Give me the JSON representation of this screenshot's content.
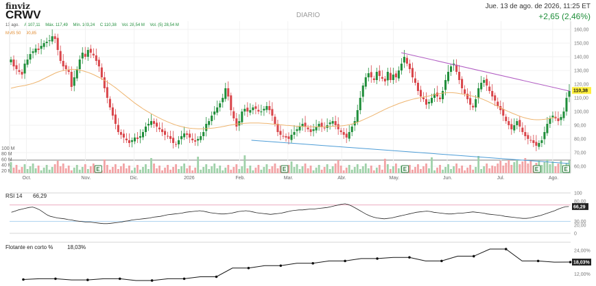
{
  "header": {
    "brand": "finviz",
    "ticker": "CRWV",
    "timeframe": "DIARIO",
    "datetime": "Jue. 13 de ago. de 2026, 11:25 ET",
    "change": "+2,65 (2,46%)"
  },
  "ohlc": {
    "date": "13 ago.",
    "open": "A 107,11",
    "high": "Máx. 117,49",
    "low": "Mín. 103,24",
    "close": "C 110,38",
    "volume": "Vol. 28,54 M",
    "volume5": "Vol. (5) 28,54 M"
  },
  "sma": {
    "label": "MMS 50",
    "value": "90,85"
  },
  "colors": {
    "up": "#1f8e3a",
    "down": "#d9454a",
    "sma": "#eeb46e",
    "trend_upper": "#b05ac2",
    "trend_lower": "#4a9bd6",
    "last_price_bg": "#ffef3d",
    "volume_up": "#9fd1a9",
    "volume_down": "#f2a3a5"
  },
  "chart_data": [
    {
      "type": "candlestick",
      "title": "CRWV",
      "ylim": [
        55,
        160
      ],
      "y_ticks": [
        "160,00",
        "150,00",
        "140,00",
        "130,00",
        "120,00",
        "110,00",
        "100,00",
        "90,00",
        "80,00",
        "70,00",
        "60,00"
      ],
      "x_ticks": [
        "Oct.",
        "Nov.",
        "Dic.",
        "2026",
        "Feb.",
        "Mar.",
        "Abr.",
        "May.",
        "Jun.",
        "Jul.",
        "Ago."
      ],
      "last_price": "110,38",
      "close_series": [
        133,
        128,
        126,
        124,
        122,
        130,
        133,
        137,
        139,
        141,
        140,
        143,
        145,
        146,
        147,
        150,
        148,
        140,
        132,
        128,
        126,
        124,
        113,
        120,
        126,
        133,
        138,
        135,
        140,
        138,
        136,
        132,
        128,
        120,
        112,
        105,
        98,
        92,
        86,
        80,
        78,
        76,
        74,
        72,
        74,
        76,
        75,
        77,
        80,
        84,
        86,
        88,
        86,
        84,
        82,
        80,
        78,
        77,
        75,
        72,
        71,
        74,
        77,
        79,
        78,
        76,
        74,
        73,
        75,
        77,
        80,
        86,
        88,
        92,
        95,
        98,
        101,
        105,
        112,
        106,
        96,
        90,
        84,
        88,
        95,
        97,
        95,
        96,
        98,
        97,
        95,
        95,
        97,
        99,
        96,
        92,
        86,
        80,
        78,
        77,
        76,
        75,
        78,
        80,
        82,
        84,
        86,
        84,
        82,
        80,
        82,
        84,
        86,
        84,
        83,
        85,
        87,
        88,
        85,
        82,
        80,
        78,
        76,
        80,
        84,
        88,
        96,
        105,
        114,
        120,
        123,
        120,
        118,
        124,
        121,
        119,
        117,
        124,
        118,
        122,
        120,
        125,
        130,
        135,
        130,
        126,
        120,
        116,
        110,
        106,
        104,
        100,
        102,
        105,
        108,
        106,
        104,
        110,
        118,
        124,
        128,
        130,
        124,
        118,
        112,
        108,
        104,
        100,
        98,
        104,
        112,
        116,
        118,
        114,
        110,
        106,
        103,
        99,
        96,
        92,
        88,
        85,
        82,
        85,
        88,
        84,
        80,
        77,
        75,
        74,
        72,
        70,
        72,
        74,
        80,
        86,
        90,
        92,
        90,
        88,
        91,
        95,
        105,
        110
      ],
      "sma50_series": [
        112,
        112.5,
        113,
        113.4,
        113.7,
        114,
        114.5,
        115,
        115.6,
        116.3,
        117,
        118,
        119,
        120,
        121,
        122,
        123,
        123.8,
        124.4,
        124.9,
        125.3,
        125.6,
        125.8,
        125.8,
        125.6,
        125.3,
        124.8,
        124.2,
        123.6,
        122.8,
        122,
        121,
        120,
        119,
        117.8,
        116.5,
        115.2,
        113.8,
        112.4,
        110.8,
        109.2,
        107.6,
        106,
        104.4,
        102.8,
        101.2,
        99.8,
        98.4,
        97,
        95.8,
        94.6,
        93.4,
        92.3,
        91.2,
        90.2,
        89.2,
        88.3,
        87.4,
        86.6,
        85.8,
        85.1,
        84.5,
        84,
        83.5,
        83.1,
        82.8,
        82.6,
        82.5,
        82.4,
        82.4,
        82.4,
        82.5,
        82.6,
        82.8,
        83,
        83.3,
        83.6,
        84,
        84.4,
        84.8,
        85.2,
        85.5,
        85.8,
        86,
        86.2,
        86.4,
        86.5,
        86.6,
        86.6,
        86.6,
        86.6,
        86.5,
        86.4,
        86.3,
        86.1,
        85.9,
        85.7,
        85.5,
        85.3,
        85.1,
        84.9,
        84.8,
        84.6,
        84.4,
        84.3,
        84.2,
        84.1,
        84,
        83.9,
        83.9,
        83.8,
        83.8,
        83.8,
        83.8,
        83.9,
        84,
        84.1,
        84.2,
        84.3,
        84.4,
        84.5,
        84.7,
        85,
        85.4,
        85.9,
        86.5,
        87.2,
        88,
        88.9,
        89.8,
        90.7,
        91.6,
        92.6,
        93.6,
        94.6,
        95.6,
        96.6,
        97.5,
        98.4,
        99.2,
        100,
        100.8,
        101.5,
        102.2,
        102.8,
        103.4,
        103.9,
        104.4,
        104.8,
        105.2,
        105.6,
        106,
        106.4,
        106.8,
        107.3,
        107.8,
        108.2,
        108.5,
        108.7,
        108.8,
        108.8,
        108.7,
        108.5,
        108.2,
        107.8,
        107.4,
        107,
        106.6,
        106.2,
        105.7,
        105.1,
        104.4,
        103.6,
        102.7,
        101.8,
        100.8,
        99.8,
        98.8,
        97.8,
        96.8,
        95.8,
        94.9,
        94,
        93.2,
        92.4,
        91.6,
        90.9,
        90.3,
        89.8,
        89.4,
        89.1,
        89,
        89,
        89.1,
        89.3,
        89.6,
        90,
        90.4,
        90.85
      ],
      "trendlines": [
        {
          "name": "resistencia",
          "from": {
            "date": "May.",
            "value": 138
          },
          "to": {
            "date": "Ago. 13",
            "value": 110
          }
        },
        {
          "name": "soporte",
          "from": {
            "date": "Feb.",
            "value": 74
          },
          "to": {
            "date": "Ago. 13",
            "value": 57
          }
        }
      ],
      "volume_ticks": [
        "100 M",
        "80 M",
        "60 M",
        "40 M",
        "20 M"
      ],
      "earnings_markers": [
        "E",
        "E",
        "E",
        "E",
        "E"
      ]
    },
    {
      "type": "line",
      "title": "RSI 14",
      "value": "66,29",
      "ylim": [
        0,
        100
      ],
      "y_ticks": [
        "100",
        "80,00",
        "70,00",
        "50,00",
        "30,00",
        "20,00",
        "0"
      ],
      "overbought": 70,
      "oversold": 30,
      "series": [
        52,
        55,
        58,
        60,
        62,
        64,
        65,
        62,
        58,
        52,
        46,
        42,
        40,
        38,
        37,
        36,
        34,
        33,
        31,
        30,
        29,
        28,
        28,
        27,
        26,
        25,
        24,
        24,
        25,
        26,
        27,
        28,
        30,
        31,
        33,
        34,
        35,
        36,
        37,
        38,
        40,
        41,
        42,
        44,
        46,
        47,
        48,
        49,
        50,
        52,
        53,
        54,
        55,
        56,
        55,
        53,
        51,
        50,
        49,
        48,
        48,
        49,
        50,
        52,
        54,
        55,
        56,
        55,
        53,
        51,
        50,
        49,
        48,
        47,
        48,
        49,
        50,
        52,
        54,
        56,
        57,
        58,
        58,
        59,
        60,
        60,
        61,
        62,
        63,
        64,
        66,
        68,
        70,
        72,
        73,
        71,
        67,
        62,
        57,
        52,
        47,
        43,
        40,
        38,
        37,
        36,
        37,
        38,
        40,
        42,
        44,
        46,
        48,
        50,
        52,
        53,
        54,
        55,
        54,
        52,
        51,
        50,
        49,
        48,
        48,
        49,
        50,
        50,
        51,
        52,
        53,
        52,
        51,
        50,
        48,
        47,
        46,
        45,
        44,
        42,
        41,
        40,
        39,
        38,
        37,
        37,
        38,
        40,
        42,
        44,
        47,
        50,
        53,
        56,
        60,
        63,
        66,
        66.29
      ]
    },
    {
      "type": "line",
      "title": "Flotante en corto %",
      "value": "18,03%",
      "y_ticks": [
        "24,00%",
        "18,03%",
        "12,00%"
      ],
      "series": [
        9.2,
        9.6,
        9.6,
        9.0,
        9.0,
        9.6,
        9.6,
        8.7,
        8.7,
        9.6,
        9.6,
        10.6,
        10.6,
        15.0,
        15.0,
        16.2,
        16.2,
        17.4,
        17.4,
        18.6,
        18.6,
        19.8,
        19.8,
        20.4,
        20.4,
        18.6,
        18.6,
        21.0,
        21.0,
        24.6,
        24.6,
        18.6,
        18.6,
        18.0,
        18.03
      ]
    }
  ]
}
